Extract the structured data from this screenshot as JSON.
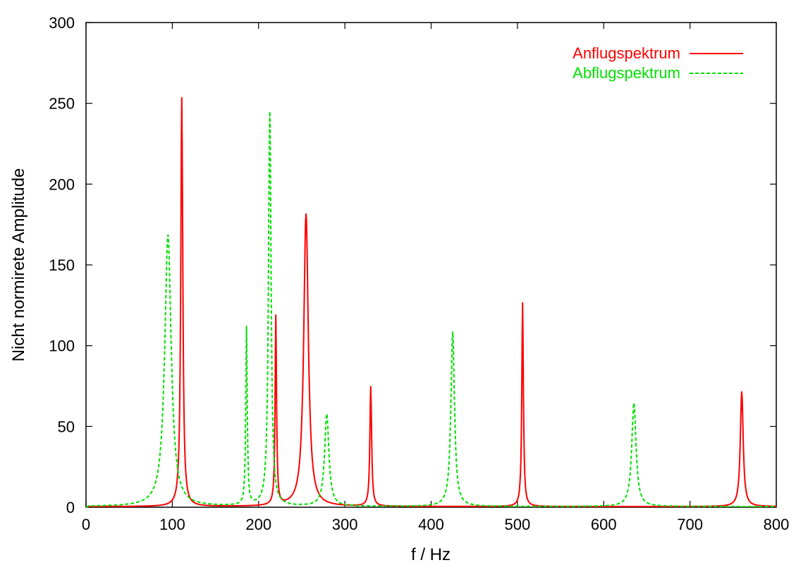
{
  "chart_data": {
    "type": "line",
    "title": "",
    "xlabel": "f / Hz",
    "ylabel": "Nicht normirete Amplitude",
    "xlim": [
      0,
      800
    ],
    "ylim": [
      0,
      300
    ],
    "xticks": [
      0,
      100,
      200,
      300,
      400,
      500,
      600,
      700,
      800
    ],
    "yticks": [
      0,
      50,
      100,
      150,
      200,
      250,
      300
    ],
    "grid": false,
    "legend_position": "top-right",
    "series": [
      {
        "name": "Anflugspektrum",
        "color": "#ff0000",
        "dash": "solid",
        "peaks": [
          {
            "f": 111,
            "a": 253,
            "w": 1.4
          },
          {
            "f": 220,
            "a": 117,
            "w": 1.0
          },
          {
            "f": 255,
            "a": 181,
            "w": 3.2
          },
          {
            "f": 330,
            "a": 74,
            "w": 1.2
          },
          {
            "f": 506,
            "a": 126,
            "w": 1.1
          },
          {
            "f": 760,
            "a": 71,
            "w": 2.0
          }
        ],
        "baseline": 0.4
      },
      {
        "name": "Abflugspektrum",
        "color": "#00e000",
        "dash": "dashed",
        "peaks": [
          {
            "f": 95,
            "a": 168,
            "w": 4.5
          },
          {
            "f": 186,
            "a": 110,
            "w": 1.0
          },
          {
            "f": 213,
            "a": 244,
            "w": 1.8
          },
          {
            "f": 279,
            "a": 57,
            "w": 3.0
          },
          {
            "f": 425,
            "a": 108,
            "w": 2.5
          },
          {
            "f": 635,
            "a": 64,
            "w": 3.0
          }
        ],
        "baseline": 0.4
      }
    ]
  }
}
